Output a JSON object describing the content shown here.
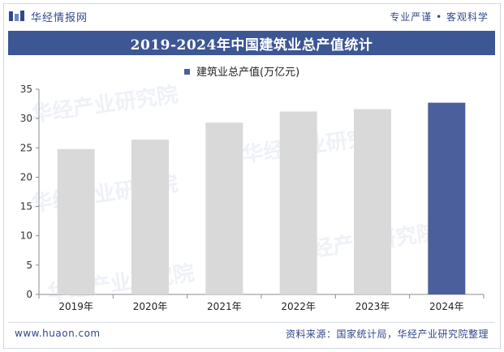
{
  "header": {
    "brand": "华经情报网",
    "slogan": "专业严谨 • 客观科学"
  },
  "title": "2019-2024年中国建筑业总产值统计",
  "footer": {
    "url": "www.huaon.com",
    "source": "资料来源：国家统计局，华经产业研究院整理"
  },
  "watermark": "华经产业研究院",
  "colors": {
    "accent": "#3d5694",
    "bar_default": "#d9d9d9",
    "bar_highlight": "#4a5f9c"
  },
  "chart_data": {
    "type": "bar",
    "categories": [
      "2019年",
      "2020年",
      "2021年",
      "2022年",
      "2023年",
      "2024年"
    ],
    "series": [
      {
        "name": "建筑业总产值(万亿元)",
        "values": [
          24.8,
          26.4,
          29.3,
          31.2,
          31.6,
          32.7
        ]
      }
    ],
    "highlight_index": 5,
    "ylim": [
      0,
      35
    ],
    "yticks": [
      0,
      5,
      10,
      15,
      20,
      25,
      30,
      35
    ],
    "legend_position": "top-center",
    "grid": false
  }
}
